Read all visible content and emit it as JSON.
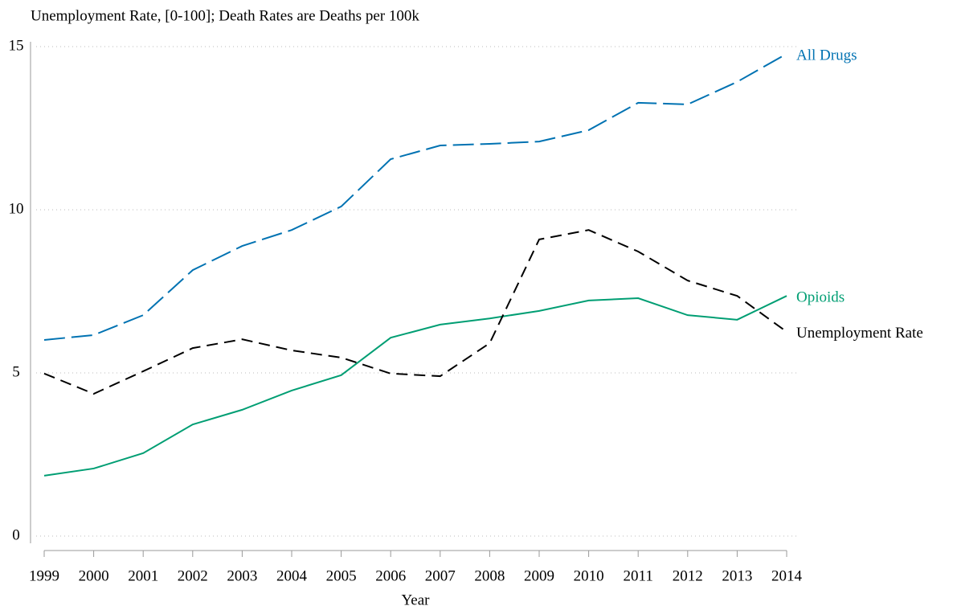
{
  "chart_data": {
    "type": "line",
    "y_label": "Unemployment Rate, [0-100]; Death Rates are Deaths per 100k",
    "x_label": "Year",
    "x": [
      1999,
      2000,
      2001,
      2002,
      2003,
      2004,
      2005,
      2006,
      2007,
      2008,
      2009,
      2010,
      2011,
      2012,
      2013,
      2014
    ],
    "xlim": [
      1999,
      2014
    ],
    "xticks": [
      1999,
      2000,
      2001,
      2002,
      2003,
      2004,
      2005,
      2006,
      2007,
      2008,
      2009,
      2010,
      2011,
      2012,
      2013,
      2014
    ],
    "ylim": [
      0,
      15
    ],
    "yticks": [
      0,
      5,
      10,
      15
    ],
    "grid": true,
    "series": [
      {
        "name": "All Drugs",
        "color": "#0072b2",
        "style": "longdash",
        "values": [
          6.01,
          6.16,
          6.77,
          8.15,
          8.89,
          9.38,
          10.1,
          11.55,
          11.97,
          12.02,
          12.09,
          12.44,
          13.28,
          13.23,
          13.92,
          14.78
        ]
      },
      {
        "name": "Opioids",
        "color": "#009e73",
        "style": "solid",
        "values": [
          1.85,
          2.07,
          2.54,
          3.42,
          3.87,
          4.46,
          4.93,
          6.08,
          6.48,
          6.67,
          6.9,
          7.22,
          7.29,
          6.77,
          6.63,
          7.36
        ]
      },
      {
        "name": "Unemployment Rate",
        "color": "#000000",
        "style": "dash",
        "values": [
          4.98,
          4.36,
          5.05,
          5.76,
          6.03,
          5.69,
          5.47,
          4.98,
          4.9,
          5.91,
          9.09,
          9.38,
          8.72,
          7.83,
          7.36,
          6.26
        ]
      }
    ]
  }
}
